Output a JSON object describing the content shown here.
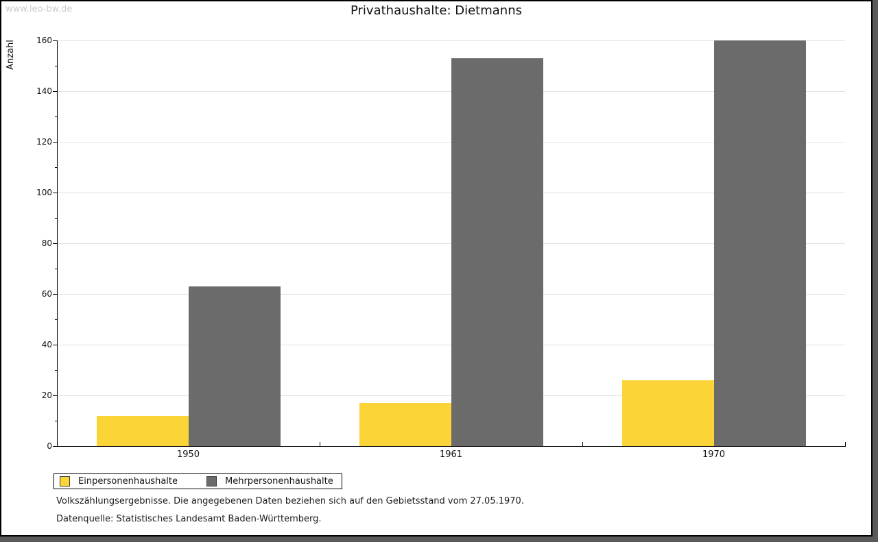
{
  "watermark": "www.leo-bw.de",
  "header": {
    "title": "Privathaushalte: Dietmanns"
  },
  "footnotes": {
    "line1": "Volkszählungsergebnisse. Die angegebenen Daten beziehen sich auf den Gebietsstand vom 27.05.1970.",
    "line2": "Datenquelle: Statistisches Landesamt Baden-Württemberg."
  },
  "colors": {
    "series_yellow": "#fbd437",
    "series_gray": "#6b6b6b",
    "gridline": "#e2e2e2",
    "watermark": "#cccccc",
    "frame_shadow": "#5a5a5a"
  },
  "chart_data": {
    "type": "bar",
    "title": "Privathaushalte: Dietmanns",
    "xlabel": "",
    "ylabel": "Anzahl",
    "categories": [
      "1950",
      "1961",
      "1970"
    ],
    "series": [
      {
        "name": "Einpersonenhaushalte",
        "color": "#fbd437",
        "values": [
          12,
          17,
          26
        ]
      },
      {
        "name": "Mehrpersonenhaushalte",
        "color": "#6b6b6b",
        "values": [
          63,
          153,
          160
        ]
      }
    ],
    "ylim": [
      0,
      160
    ],
    "ytick_step": 20,
    "yminor_step": 10,
    "grid": true,
    "legend_position": "bottom-left"
  }
}
